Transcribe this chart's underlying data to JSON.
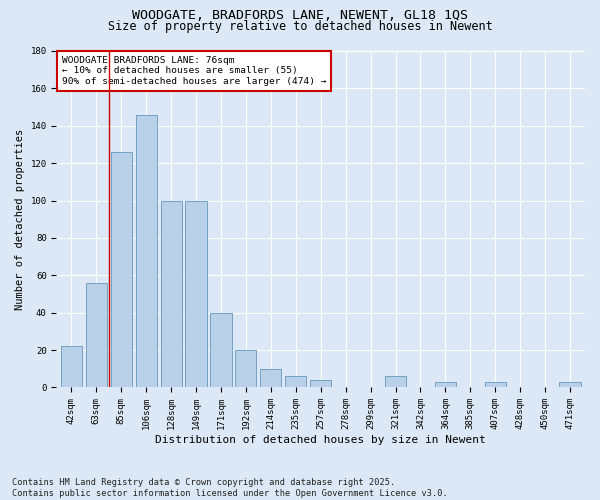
{
  "title1": "WOODGATE, BRADFORDS LANE, NEWENT, GL18 1QS",
  "title2": "Size of property relative to detached houses in Newent",
  "xlabel": "Distribution of detached houses by size in Newent",
  "ylabel": "Number of detached properties",
  "categories": [
    "42sqm",
    "63sqm",
    "85sqm",
    "106sqm",
    "128sqm",
    "149sqm",
    "171sqm",
    "192sqm",
    "214sqm",
    "235sqm",
    "257sqm",
    "278sqm",
    "299sqm",
    "321sqm",
    "342sqm",
    "364sqm",
    "385sqm",
    "407sqm",
    "428sqm",
    "450sqm",
    "471sqm"
  ],
  "values": [
    22,
    56,
    126,
    146,
    100,
    100,
    40,
    20,
    10,
    6,
    4,
    0,
    0,
    6,
    0,
    3,
    0,
    3,
    0,
    0,
    3
  ],
  "bar_color": "#b8d0e8",
  "bar_edge_color": "#6699bb",
  "vline_x": 1.5,
  "vline_color": "#cc0000",
  "annotation_text": "WOODGATE BRADFORDS LANE: 76sqm\n← 10% of detached houses are smaller (55)\n90% of semi-detached houses are larger (474) →",
  "annotation_box_color": "#ffffff",
  "annotation_box_edge": "#cc0000",
  "ylim": [
    0,
    180
  ],
  "yticks": [
    0,
    20,
    40,
    60,
    80,
    100,
    120,
    140,
    160,
    180
  ],
  "bg_color": "#dce8f5",
  "plot_bg_color": "#dce8f5",
  "footer": "Contains HM Land Registry data © Crown copyright and database right 2025.\nContains public sector information licensed under the Open Government Licence v3.0.",
  "title1_fontsize": 9.5,
  "title2_fontsize": 8.5,
  "xlabel_fontsize": 8,
  "ylabel_fontsize": 7.5,
  "tick_fontsize": 6.5,
  "annot_fontsize": 6.8,
  "footer_fontsize": 6.2
}
